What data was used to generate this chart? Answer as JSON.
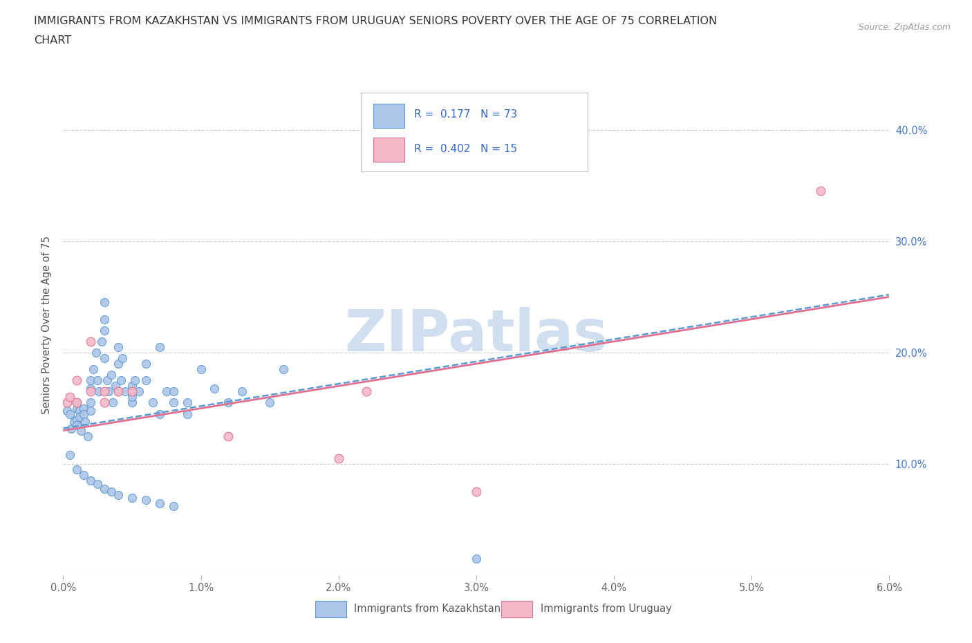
{
  "title_line1": "IMMIGRANTS FROM KAZAKHSTAN VS IMMIGRANTS FROM URUGUAY SENIORS POVERTY OVER THE AGE OF 75 CORRELATION",
  "title_line2": "CHART",
  "source": "Source: ZipAtlas.com",
  "ylabel": "Seniors Poverty Over the Age of 75",
  "xlim": [
    0.0,
    0.06
  ],
  "ylim": [
    0.0,
    0.45
  ],
  "xtick_positions": [
    0.0,
    0.01,
    0.02,
    0.03,
    0.04,
    0.05,
    0.06
  ],
  "xtick_labels": [
    "0.0%",
    "1.0%",
    "2.0%",
    "3.0%",
    "4.0%",
    "5.0%",
    "6.0%"
  ],
  "ytick_positions": [
    0.1,
    0.2,
    0.3,
    0.4
  ],
  "ytick_labels": [
    "10.0%",
    "20.0%",
    "30.0%",
    "40.0%"
  ],
  "grid_color": "#cccccc",
  "background_color": "#ffffff",
  "kazakhstan_color": "#aec6e8",
  "kazakhstan_edge_color": "#5b9bd5",
  "uruguay_color": "#f4b8c8",
  "uruguay_edge_color": "#e07090",
  "watermark_color": "#d0dff0",
  "legend_R1": "0.177",
  "legend_N1": "73",
  "legend_R2": "0.402",
  "legend_N2": "15",
  "legend_label1": "Immigrants from Kazakhstan",
  "legend_label2": "Immigrants from Uruguay",
  "kaz_x": [
    0.0003,
    0.0005,
    0.0006,
    0.0008,
    0.001,
    0.001,
    0.001,
    0.001,
    0.0012,
    0.0012,
    0.0013,
    0.0015,
    0.0015,
    0.0016,
    0.0018,
    0.002,
    0.002,
    0.002,
    0.002,
    0.0022,
    0.0024,
    0.0025,
    0.0026,
    0.0028,
    0.003,
    0.003,
    0.003,
    0.003,
    0.0032,
    0.0033,
    0.0035,
    0.0036,
    0.0038,
    0.004,
    0.004,
    0.004,
    0.0042,
    0.0043,
    0.0045,
    0.005,
    0.005,
    0.005,
    0.0052,
    0.0055,
    0.006,
    0.006,
    0.0065,
    0.007,
    0.007,
    0.0075,
    0.008,
    0.008,
    0.009,
    0.009,
    0.01,
    0.011,
    0.012,
    0.013,
    0.015,
    0.016,
    0.0005,
    0.001,
    0.0015,
    0.002,
    0.0025,
    0.003,
    0.0035,
    0.004,
    0.005,
    0.006,
    0.007,
    0.008,
    0.03
  ],
  "kaz_y": [
    0.148,
    0.145,
    0.132,
    0.138,
    0.155,
    0.15,
    0.14,
    0.135,
    0.148,
    0.142,
    0.13,
    0.15,
    0.145,
    0.138,
    0.125,
    0.155,
    0.148,
    0.168,
    0.175,
    0.185,
    0.2,
    0.175,
    0.165,
    0.21,
    0.23,
    0.22,
    0.245,
    0.195,
    0.175,
    0.165,
    0.18,
    0.155,
    0.17,
    0.205,
    0.19,
    0.165,
    0.175,
    0.195,
    0.165,
    0.155,
    0.17,
    0.16,
    0.175,
    0.165,
    0.175,
    0.19,
    0.155,
    0.145,
    0.205,
    0.165,
    0.165,
    0.155,
    0.145,
    0.155,
    0.185,
    0.168,
    0.155,
    0.165,
    0.155,
    0.185,
    0.108,
    0.095,
    0.09,
    0.085,
    0.082,
    0.078,
    0.075,
    0.072,
    0.07,
    0.068,
    0.065,
    0.062,
    0.015
  ],
  "uru_x": [
    0.0003,
    0.0005,
    0.001,
    0.001,
    0.002,
    0.002,
    0.003,
    0.003,
    0.004,
    0.005,
    0.012,
    0.02,
    0.022,
    0.03,
    0.055
  ],
  "uru_y": [
    0.155,
    0.16,
    0.155,
    0.175,
    0.165,
    0.21,
    0.155,
    0.165,
    0.165,
    0.165,
    0.125,
    0.105,
    0.165,
    0.075,
    0.345
  ],
  "kaz_line_color": "#5b9bd5",
  "uru_line_color": "#e07090",
  "kaz_line_style": "--",
  "uru_line_style": "-",
  "legend_text_color": "#3366cc"
}
